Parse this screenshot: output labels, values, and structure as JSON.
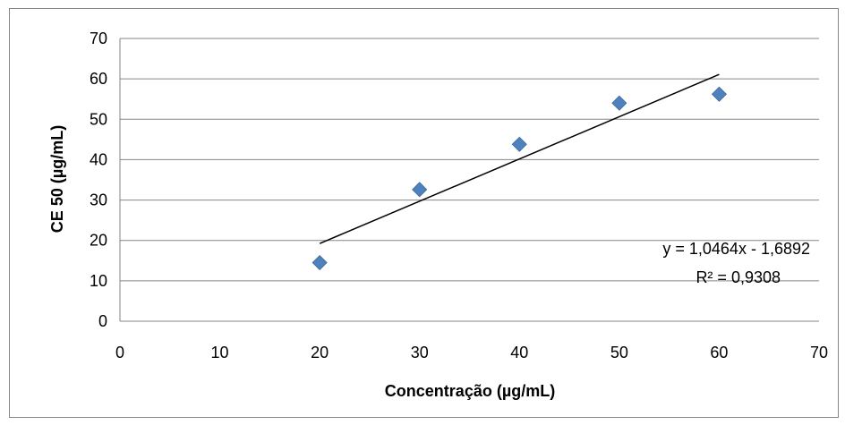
{
  "chart_data": {
    "type": "scatter",
    "title": "",
    "xlabel": "Concentração (µg/mL)",
    "ylabel": "CE 50 (µg/mL)",
    "xlim": [
      0,
      70
    ],
    "ylim": [
      0,
      70
    ],
    "xticks": [
      "0",
      "10",
      "20",
      "30",
      "40",
      "50",
      "60",
      "70"
    ],
    "yticks": [
      "0",
      "10",
      "20",
      "30",
      "40",
      "50",
      "60",
      "70"
    ],
    "grid": "horizontal",
    "marker_color": "#4F81BD",
    "trendline_color": "#000000",
    "series": [
      {
        "x": [
          20,
          30,
          40,
          50,
          60
        ],
        "y": [
          14.5,
          32.6,
          43.8,
          54.0,
          56.2
        ]
      }
    ],
    "trendline": {
      "type": "linear",
      "slope": 1.0464,
      "intercept": -1.6892,
      "x_range": [
        20,
        60
      ]
    },
    "annotations": {
      "equation": "y = 1,0464x - 1,6892",
      "r_squared": "R² = 0,9308"
    }
  }
}
